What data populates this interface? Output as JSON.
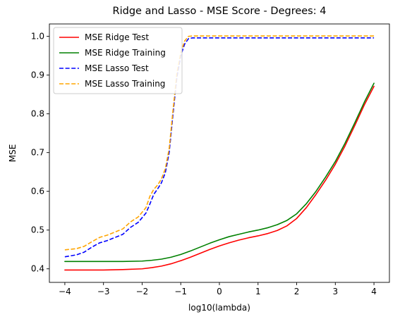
{
  "chart_data": {
    "type": "line",
    "title": "Ridge and Lasso - MSE Score - Degrees: 4",
    "xlabel": "log10(lambda)",
    "ylabel": "MSE",
    "xlim": [
      -4.4,
      4.4
    ],
    "ylim": [
      0.365,
      1.032
    ],
    "xticks": [
      -4,
      -3,
      -2,
      -1,
      0,
      1,
      2,
      3,
      4
    ],
    "yticks": [
      0.4,
      0.5,
      0.6,
      0.7,
      0.8,
      0.9,
      1.0
    ],
    "xtick_labels": [
      "−4",
      "−3",
      "−2",
      "−1",
      "0",
      "1",
      "2",
      "3",
      "4"
    ],
    "ytick_labels": [
      "0.4",
      "0.5",
      "0.6",
      "0.7",
      "0.8",
      "0.9",
      "1.0"
    ],
    "grid": false,
    "legend_position": "top-left",
    "series": [
      {
        "name": "MSE Ridge Test",
        "color": "#ff0000",
        "style": "solid",
        "x": [
          -4,
          -3.5,
          -3,
          -2.5,
          -2,
          -1.75,
          -1.5,
          -1.25,
          -1,
          -0.75,
          -0.5,
          -0.25,
          0,
          0.25,
          0.5,
          0.75,
          1,
          1.25,
          1.5,
          1.75,
          2,
          2.25,
          2.5,
          2.75,
          3,
          3.25,
          3.5,
          3.75,
          4
        ],
        "y": [
          0.397,
          0.397,
          0.397,
          0.398,
          0.4,
          0.403,
          0.407,
          0.413,
          0.421,
          0.43,
          0.44,
          0.45,
          0.459,
          0.467,
          0.474,
          0.48,
          0.485,
          0.491,
          0.499,
          0.511,
          0.53,
          0.558,
          0.592,
          0.629,
          0.67,
          0.717,
          0.769,
          0.823,
          0.871
        ]
      },
      {
        "name": "MSE Ridge Training",
        "color": "#008000",
        "style": "solid",
        "x": [
          -4,
          -3.5,
          -3,
          -2.5,
          -2,
          -1.75,
          -1.5,
          -1.25,
          -1,
          -0.75,
          -0.5,
          -0.25,
          0,
          0.25,
          0.5,
          0.75,
          1,
          1.25,
          1.5,
          1.75,
          2,
          2.25,
          2.5,
          2.75,
          3,
          3.25,
          3.5,
          3.75,
          4
        ],
        "y": [
          0.419,
          0.419,
          0.419,
          0.419,
          0.42,
          0.422,
          0.425,
          0.43,
          0.437,
          0.446,
          0.456,
          0.466,
          0.475,
          0.483,
          0.489,
          0.495,
          0.5,
          0.506,
          0.514,
          0.525,
          0.542,
          0.568,
          0.6,
          0.637,
          0.677,
          0.724,
          0.776,
          0.83,
          0.879
        ]
      },
      {
        "name": "MSE Lasso Test",
        "color": "#0000ff",
        "style": "dashed",
        "x": [
          -4,
          -3.7,
          -3.5,
          -3.3,
          -3.1,
          -2.9,
          -2.7,
          -2.5,
          -2.3,
          -2.1,
          -1.9,
          -1.8,
          -1.7,
          -1.6,
          -1.5,
          -1.4,
          -1.3,
          -1.2,
          -1.1,
          -1.0,
          -0.9,
          -0.8,
          -0.7,
          -0.6,
          0,
          1,
          2,
          3,
          4
        ],
        "y": [
          0.431,
          0.436,
          0.443,
          0.456,
          0.467,
          0.473,
          0.481,
          0.489,
          0.507,
          0.52,
          0.544,
          0.567,
          0.592,
          0.606,
          0.622,
          0.648,
          0.7,
          0.8,
          0.895,
          0.95,
          0.98,
          0.994,
          0.996,
          0.996,
          0.996,
          0.996,
          0.996,
          0.996,
          0.996
        ]
      },
      {
        "name": "MSE Lasso Training",
        "color": "#ffa500",
        "style": "dashed",
        "x": [
          -4,
          -3.7,
          -3.5,
          -3.3,
          -3.1,
          -2.9,
          -2.7,
          -2.5,
          -2.3,
          -2.1,
          -1.9,
          -1.8,
          -1.7,
          -1.6,
          -1.5,
          -1.4,
          -1.3,
          -1.2,
          -1.1,
          -1.0,
          -0.9,
          -0.8,
          -0.7,
          -0.6,
          0,
          1,
          2,
          3,
          4
        ],
        "y": [
          0.449,
          0.452,
          0.458,
          0.47,
          0.481,
          0.487,
          0.495,
          0.503,
          0.521,
          0.534,
          0.558,
          0.587,
          0.605,
          0.616,
          0.632,
          0.658,
          0.71,
          0.81,
          0.905,
          0.958,
          0.988,
          1.0,
          1.001,
          1.001,
          1.001,
          1.001,
          1.001,
          1.001,
          1.001
        ]
      }
    ]
  }
}
